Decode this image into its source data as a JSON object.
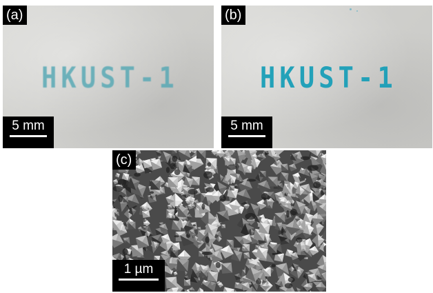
{
  "panels": {
    "a": {
      "label": "(a)",
      "stamp_text": "HKUST-1",
      "scale": "5 mm"
    },
    "b": {
      "label": "(b)",
      "stamp_text": "HKUST-1",
      "scale": "5 mm"
    },
    "c": {
      "label": "(c)",
      "scale": "1 µm"
    }
  },
  "colors": {
    "paper": "#d2d2cf",
    "stamp_faint": "#55a8b4",
    "stamp_strong": "#1a9fb8",
    "label_bg": "#000000",
    "label_fg": "#ffffff"
  }
}
